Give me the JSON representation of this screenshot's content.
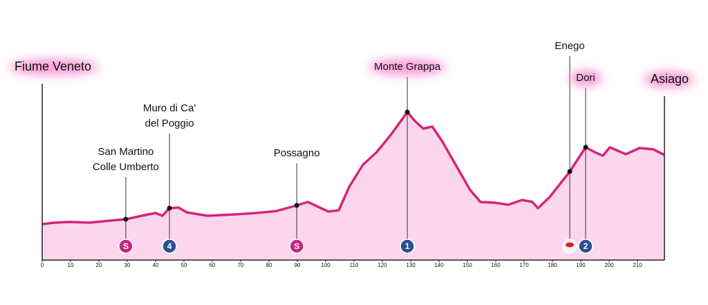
{
  "chart_data": {
    "type": "area",
    "x": [
      0,
      4.6,
      9.5,
      16.8,
      24,
      29.5,
      36.3,
      40,
      42.4,
      44.9,
      48,
      51,
      58.3,
      68,
      75.4,
      82.7,
      89.8,
      93.7,
      97.3,
      101,
      104.6,
      108.3,
      113.2,
      118,
      123,
      128.8,
      131.5,
      134.4,
      137.6,
      141.2,
      146.1,
      151,
      154.6,
      159.5,
      164.4,
      169.3,
      172.9,
      174.9,
      179,
      186.1,
      191.7,
      194.9,
      197.8,
      200.2,
      205.9,
      210.7,
      215.6,
      219.5
    ],
    "values": [
      413,
      429,
      437,
      429,
      452,
      468,
      516,
      540,
      508,
      595,
      603,
      548,
      508,
      524,
      540,
      563,
      627,
      667,
      611,
      556,
      571,
      841,
      1095,
      1238,
      1437,
      1698,
      1595,
      1508,
      1532,
      1357,
      1079,
      802,
      667,
      659,
      635,
      690,
      667,
      595,
      722,
      1016,
      1294,
      1238,
      1198,
      1294,
      1214,
      1286,
      1270,
      1206
    ],
    "color": "#d6247a",
    "fill": "#fcd6ec",
    "xlim": [
      0,
      219.5
    ],
    "xticks": [
      0,
      10,
      20,
      30,
      40,
      50,
      60,
      70,
      80,
      90,
      100,
      110,
      120,
      130,
      140,
      150,
      160,
      170,
      180,
      190,
      200,
      210
    ],
    "ylim": [
      0,
      2000
    ],
    "start": {
      "label": "Fiume Veneto",
      "highlight": true
    },
    "finish": {
      "label": "Asiago",
      "highlight": true
    },
    "points": [
      {
        "lines": [
          "San Martino",
          "Colle Umberto"
        ],
        "x": 29.5,
        "value": 468,
        "badge": "S",
        "badge_color": "#c2277f"
      },
      {
        "lines": [
          "Muro di Ca'",
          "del Poggio"
        ],
        "x": 44.9,
        "value": 595,
        "badge": "4",
        "badge_color": "#2c4f8f"
      },
      {
        "lines": [
          "Possagno"
        ],
        "x": 89.8,
        "value": 627,
        "badge": "S",
        "badge_color": "#c2277f"
      },
      {
        "lines": [
          "Monte Grappa"
        ],
        "x": 128.8,
        "value": 1698,
        "badge": "1",
        "badge_color": "#2c4f8f",
        "highlight": true
      },
      {
        "lines": [
          "Enego"
        ],
        "x": 186.1,
        "value": 1016,
        "badge_color": "#f2f2f2"
      },
      {
        "lines": [
          "Dori"
        ],
        "x": 191.7,
        "value": 1294,
        "badge": "2",
        "badge_color": "#2c4f8f",
        "highlight": true
      }
    ]
  }
}
